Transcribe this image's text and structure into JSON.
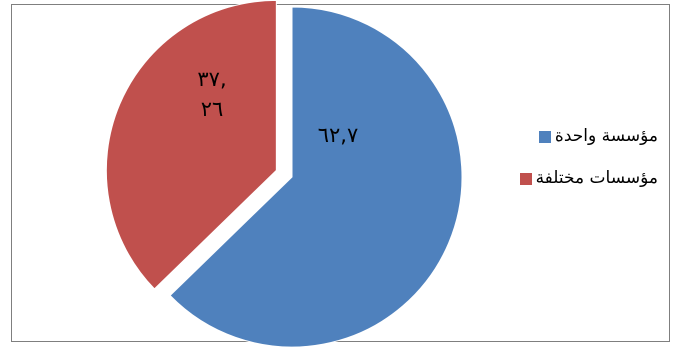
{
  "chart_data": {
    "type": "pie",
    "title": "",
    "slices": [
      {
        "label": "مؤسسة واحدة",
        "value": 62.7,
        "display": "٦٢,٧",
        "color": "#4f81bd",
        "exploded": false
      },
      {
        "label": "مؤسسات مختلفة",
        "value": 37.26,
        "display_lines": [
          "٣٧,",
          "٢٦"
        ],
        "color": "#c0504d",
        "exploded": true
      }
    ],
    "legend_position": "right"
  }
}
